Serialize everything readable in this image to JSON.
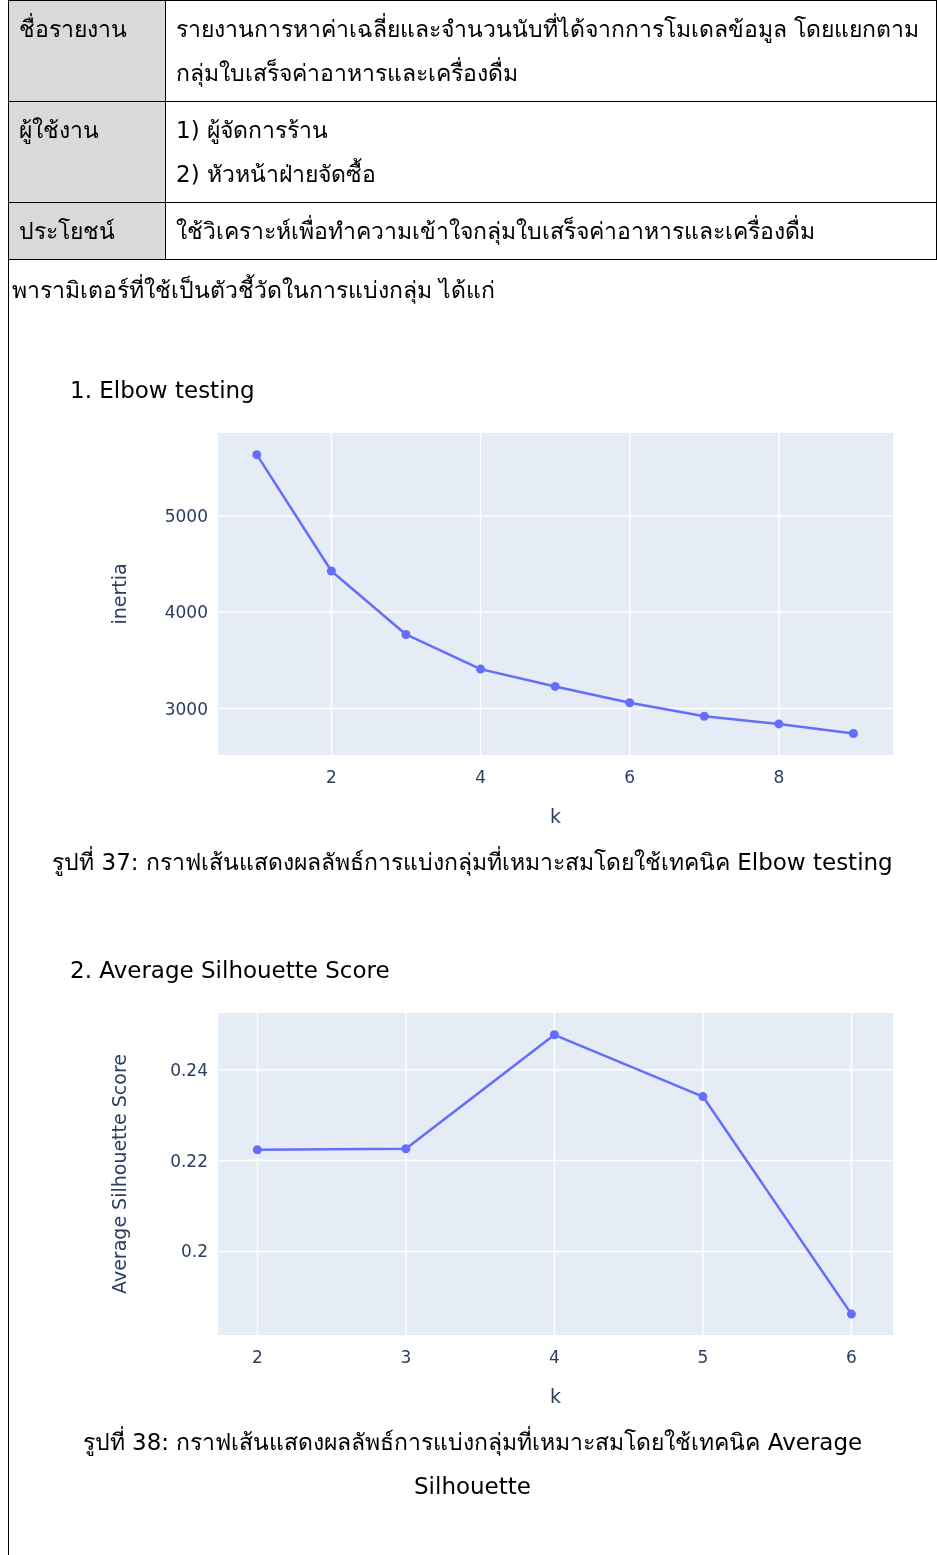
{
  "chart_data": [
    {
      "type": "other",
      "annotations": [
        "ชื่อรายงาน",
        "รายงานการหาค่าเฉลี่ยและจำนวนนับที่ได้จากการโมเดลข้อมูล โดยแยกตามกลุ่มใบเสร็จค่าอาหารและเครื่องดื่ม",
        "ผู้ใช้งาน",
        "1) ผู้จัดการร้าน",
        "2) หัวหน้าฝ่ายจัดซื้อ",
        "ประโยชน์",
        "ใช้วิเคราะห์เพื่อทำความเข้าใจกลุ่มใบเสร็จค่าอาหารและเครื่องดื่ม",
        "พารามิเตอร์ที่ใช้เป็นตัวชี้วัดในการแบ่งกลุ่ม ได้แก่"
      ]
    },
    {
      "type": "line",
      "title": "1.   Elbow testing",
      "xlabel": "k",
      "ylabel": "inertia",
      "color": "#636efa",
      "marker": "circle",
      "line_style": "solid",
      "grid": true,
      "x": [
        1,
        2,
        3,
        4,
        5,
        6,
        7,
        8,
        9
      ],
      "values": [
        5640,
        4430,
        3770,
        3410,
        3230,
        3060,
        2920,
        2840,
        2740
      ],
      "xlim": [
        0.48,
        9.53
      ],
      "ylim": [
        2517,
        5865
      ],
      "xticks": [
        2,
        4,
        6,
        8
      ],
      "yticks": [
        3000,
        4000,
        5000
      ],
      "annotations": [
        "รูปที่ 37: กราฟเส้นแสดงผลลัพธ์การแบ่งกลุ่มที่เหมาะสมโดยใช้เทคนิค Elbow testing"
      ]
    },
    {
      "type": "line",
      "title": "2.   Average Silhouette Score",
      "xlabel": "k",
      "ylabel": "Average Silhouette Score",
      "color": "#636efa",
      "marker": "circle",
      "line_style": "solid",
      "grid": true,
      "x": [
        2,
        3,
        4,
        5,
        6
      ],
      "values": [
        0.2224,
        0.2226,
        0.2477,
        0.2341,
        0.1862
      ],
      "xlim": [
        1.735,
        6.28
      ],
      "ylim": [
        0.1816,
        0.2525
      ],
      "xticks": [
        2,
        3,
        4,
        5,
        6
      ],
      "yticks": [
        0.2,
        0.22,
        0.24
      ],
      "annotations": [
        "รูปที่ 38: กราฟเส้นแสดงผลลัพธ์การแบ่งกลุ่มที่เหมาะสมโดยใช้เทคนิค Average Silhouette"
      ]
    }
  ]
}
